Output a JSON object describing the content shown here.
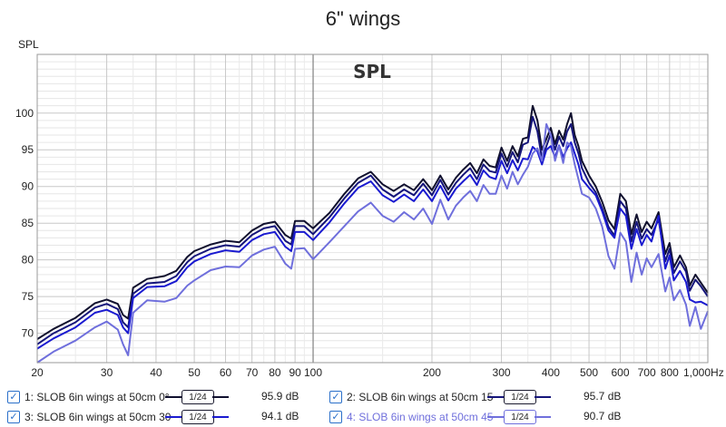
{
  "title": "6\" wings",
  "chart_data": {
    "type": "line",
    "title": "6\" wings",
    "overlay_label": "SPL",
    "ylabel": "SPL",
    "xunit": "Hz",
    "xscale": "log",
    "xlim": [
      20,
      1000
    ],
    "ylim": [
      66,
      108
    ],
    "yticks": [
      70,
      75,
      80,
      85,
      90,
      95,
      100
    ],
    "xticks": [
      {
        "v": 20,
        "label": "20"
      },
      {
        "v": 30,
        "label": "30"
      },
      {
        "v": 40,
        "label": "40"
      },
      {
        "v": 50,
        "label": "50"
      },
      {
        "v": 60,
        "label": "60"
      },
      {
        "v": 70,
        "label": "70"
      },
      {
        "v": 80,
        "label": "80"
      },
      {
        "v": 90,
        "label": "90"
      },
      {
        "v": 100,
        "label": "100"
      },
      {
        "v": 200,
        "label": "200"
      },
      {
        "v": 300,
        "label": "300"
      },
      {
        "v": 400,
        "label": "400"
      },
      {
        "v": 500,
        "label": "500"
      },
      {
        "v": 600,
        "label": "600"
      },
      {
        "v": 700,
        "label": "700"
      },
      {
        "v": 800,
        "label": "800"
      },
      {
        "v": 1000,
        "label": "1,000Hz"
      }
    ],
    "x": [
      20,
      22,
      25,
      28,
      30,
      32,
      33,
      34,
      35,
      38,
      42,
      45,
      48,
      50,
      55,
      60,
      65,
      70,
      75,
      80,
      85,
      88,
      90,
      95,
      100,
      110,
      120,
      130,
      140,
      150,
      160,
      170,
      180,
      190,
      200,
      210,
      220,
      230,
      240,
      250,
      260,
      270,
      280,
      290,
      300,
      310,
      320,
      330,
      340,
      350,
      360,
      370,
      380,
      390,
      400,
      410,
      420,
      430,
      440,
      450,
      460,
      470,
      480,
      500,
      520,
      540,
      560,
      580,
      600,
      620,
      640,
      660,
      680,
      700,
      720,
      750,
      780,
      800,
      820,
      850,
      880,
      900,
      930,
      960,
      1000
    ],
    "series": [
      {
        "name": "1: SLOB 6in wings at 50cm 0°",
        "color": "#10102e",
        "smoothing": "1/24",
        "value": "95.9 dB",
        "values": [
          69.2,
          70.6,
          72.1,
          74.1,
          74.6,
          74.0,
          72.5,
          72.0,
          76.2,
          77.4,
          77.8,
          78.5,
          80.4,
          81.2,
          82.1,
          82.6,
          82.4,
          84.0,
          84.9,
          85.2,
          83.4,
          82.9,
          85.3,
          85.3,
          84.3,
          86.4,
          89.0,
          91.1,
          92.0,
          90.3,
          89.4,
          90.3,
          89.5,
          91.0,
          89.5,
          91.5,
          89.6,
          91.2,
          92.3,
          93.2,
          91.8,
          93.7,
          92.8,
          92.6,
          95.3,
          93.5,
          95.5,
          94.1,
          96.5,
          96.7,
          101.0,
          99.0,
          95.0,
          96.5,
          98.0,
          95.8,
          97.6,
          96.4,
          98.5,
          100.0,
          97.0,
          95.5,
          93.5,
          91.5,
          90.0,
          87.9,
          85.4,
          84.2,
          89.0,
          88.0,
          83.5,
          86.2,
          83.8,
          85.2,
          84.3,
          86.5,
          80.8,
          82.3,
          79.0,
          80.6,
          79.0,
          76.5,
          78.0,
          76.9,
          75.5
        ]
      },
      {
        "name": "2: SLOB 6in wings at 50cm 15",
        "color": "#15157a",
        "smoothing": "1/24",
        "value": "95.7 dB",
        "values": [
          68.5,
          70.0,
          71.5,
          73.5,
          74.0,
          73.3,
          71.5,
          70.8,
          75.4,
          76.8,
          77.0,
          77.8,
          79.7,
          80.5,
          81.5,
          82.0,
          81.8,
          83.4,
          84.3,
          84.6,
          82.6,
          82.1,
          84.6,
          84.6,
          83.5,
          85.8,
          88.4,
          90.5,
          91.5,
          89.6,
          88.6,
          89.6,
          88.8,
          90.4,
          88.8,
          90.9,
          88.9,
          90.5,
          91.6,
          92.5,
          91.0,
          93.0,
          92.1,
          91.9,
          94.5,
          92.7,
          94.7,
          93.3,
          95.7,
          96.0,
          99.5,
          97.5,
          93.8,
          95.5,
          97.2,
          95.0,
          96.8,
          95.5,
          97.5,
          98.5,
          96.0,
          94.5,
          92.5,
          90.5,
          89.2,
          87.0,
          84.5,
          83.3,
          88.0,
          87.0,
          82.5,
          85.2,
          82.9,
          84.2,
          83.4,
          85.5,
          79.8,
          81.5,
          78.2,
          79.8,
          78.4,
          75.8,
          77.3,
          76.4,
          75.0
        ]
      },
      {
        "name": "3: SLOB 6in wings at 50cm 30",
        "color": "#1a1ad0",
        "smoothing": "1/24",
        "value": "94.1 dB",
        "values": [
          67.9,
          69.3,
          70.8,
          72.8,
          73.2,
          72.5,
          70.8,
          70.0,
          74.8,
          76.3,
          76.4,
          77.1,
          79.0,
          79.8,
          80.8,
          81.3,
          81.1,
          82.7,
          83.5,
          83.8,
          81.8,
          81.2,
          83.8,
          83.8,
          82.7,
          85.1,
          87.7,
          89.8,
          90.7,
          88.8,
          87.9,
          88.9,
          88.0,
          89.6,
          88.0,
          90.1,
          88.1,
          89.7,
          90.7,
          91.6,
          90.2,
          92.2,
          91.3,
          91.0,
          93.5,
          91.8,
          93.6,
          92.2,
          93.8,
          93.7,
          95.4,
          94.8,
          93.0,
          95.0,
          95.5,
          94.0,
          95.6,
          94.0,
          95.2,
          96.0,
          94.5,
          93.0,
          91.0,
          89.8,
          88.8,
          86.6,
          84.0,
          83.0,
          87.0,
          86.0,
          81.5,
          84.2,
          82.0,
          83.4,
          82.5,
          86.0,
          78.8,
          80.6,
          77.2,
          78.5,
          77.0,
          74.6,
          74.2,
          74.3,
          73.8
        ]
      },
      {
        "name": "4: SLOB 6in wings at 50cm 45",
        "color": "#6f6fdc",
        "smoothing": "1/24",
        "value": "90.7 dB",
        "values": [
          66.0,
          67.5,
          69.0,
          70.8,
          71.6,
          70.5,
          68.5,
          67.0,
          72.8,
          74.5,
          74.3,
          74.8,
          76.5,
          77.2,
          78.6,
          79.1,
          79.0,
          80.6,
          81.4,
          81.8,
          79.5,
          78.8,
          81.5,
          81.6,
          80.1,
          82.4,
          84.6,
          86.6,
          87.8,
          86.0,
          85.2,
          86.5,
          85.5,
          87.0,
          84.9,
          88.2,
          85.5,
          87.4,
          88.5,
          89.4,
          88.0,
          90.2,
          89.0,
          89.0,
          91.5,
          89.7,
          92.0,
          90.3,
          91.6,
          92.7,
          94.5,
          95.2,
          93.5,
          98.5,
          97.0,
          93.5,
          95.5,
          93.2,
          96.0,
          95.5,
          93.0,
          91.0,
          89.0,
          88.5,
          87.0,
          84.5,
          80.5,
          78.8,
          83.7,
          82.5,
          77.0,
          81.0,
          78.0,
          80.2,
          79.0,
          80.8,
          75.7,
          77.6,
          74.5,
          75.9,
          73.9,
          71.0,
          73.6,
          70.6,
          73.0
        ]
      }
    ]
  },
  "legend": {
    "items": [
      {
        "label": "1: SLOB 6in wings at 50cm 0°",
        "smoothing": "1/24",
        "value": "95.9 dB",
        "color": "#10102e"
      },
      {
        "label": "2: SLOB 6in wings at 50cm 15",
        "smoothing": "1/24",
        "value": "95.7 dB",
        "color": "#15157a"
      },
      {
        "label": "3: SLOB 6in wings at 50cm 30",
        "smoothing": "1/24",
        "value": "94.1 dB",
        "color": "#1a1ad0"
      },
      {
        "label": "4: SLOB 6in wings at 50cm 45",
        "smoothing": "1/24",
        "value": "90.7 dB",
        "color": "#6f6fdc"
      }
    ]
  }
}
